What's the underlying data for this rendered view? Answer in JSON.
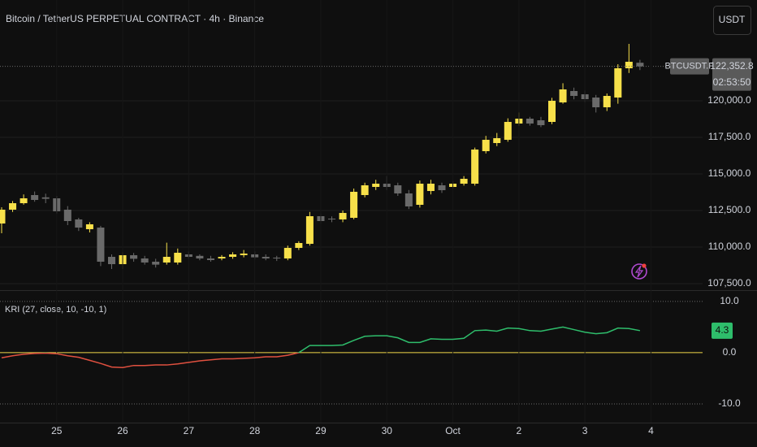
{
  "ui": {
    "currency_button": "USDT"
  },
  "chart_data": [
    {
      "type": "candlestick",
      "title": "Bitcoin / TetherUS PERPETUAL CONTRACT · 4h · Binance",
      "symbol_label": "BTCUSDT.P",
      "last_price_label": "122,352.8",
      "countdown": "02:53:50",
      "up_color": "#f7e04a",
      "down_color": "#6a6a6a",
      "grid": true,
      "ylim": [
        107056,
        126889
      ],
      "yticks": [
        {
          "value": 107500,
          "label": "107,500.0"
        },
        {
          "value": 110000,
          "label": "110,000.0"
        },
        {
          "value": 112500,
          "label": "112,500.0"
        },
        {
          "value": 115000,
          "label": "115,000.0"
        },
        {
          "value": 117500,
          "label": "117,500.0"
        },
        {
          "value": 120000,
          "label": "120,000.0"
        }
      ],
      "open": [
        111611,
        112556,
        113000,
        113556,
        113400,
        113333,
        112556,
        111889,
        111222,
        111333,
        109333,
        108833,
        109444,
        109222,
        109000,
        108944,
        108944,
        109500,
        109400,
        109222,
        109222,
        109333,
        109450,
        109500,
        109333,
        109278,
        109222,
        109944,
        110222,
        112111,
        111944,
        111889,
        112000,
        113556,
        114111,
        114333,
        114222,
        113667,
        112889,
        113833,
        114222,
        114111,
        114333,
        114333,
        116556,
        117111,
        117333,
        118444,
        118778,
        118667,
        118556,
        119889,
        120667,
        120444,
        120222,
        119556,
        120222,
        122222,
        122600,
        null
      ],
      "high": [
        112722,
        113150,
        113600,
        113800,
        113650,
        113500,
        112800,
        112000,
        111700,
        111450,
        109500,
        109650,
        109600,
        109400,
        109200,
        110300,
        109900,
        109700,
        109500,
        109400,
        109450,
        109650,
        109800,
        109700,
        109500,
        109400,
        110100,
        110400,
        112400,
        112300,
        112100,
        112500,
        114000,
        114400,
        114600,
        114850,
        114400,
        113900,
        114550,
        114600,
        114400,
        114500,
        114850,
        116800,
        117600,
        117800,
        118800,
        119200,
        118900,
        118900,
        120200,
        121200,
        120900,
        120700,
        120400,
        120500,
        122500,
        123889,
        122800,
        null
      ],
      "low": [
        110945,
        112400,
        112900,
        113100,
        113000,
        112300,
        111500,
        111100,
        111000,
        108700,
        108500,
        108500,
        109000,
        108800,
        108600,
        108800,
        108800,
        109200,
        109100,
        109000,
        109100,
        109200,
        109300,
        109150,
        109100,
        109050,
        109100,
        109800,
        110100,
        111600,
        111700,
        111700,
        111900,
        113400,
        113900,
        113900,
        113500,
        112600,
        112700,
        113600,
        113700,
        114000,
        114200,
        114200,
        116400,
        116900,
        117200,
        118300,
        118300,
        118200,
        118400,
        119800,
        120100,
        119900,
        119200,
        119300,
        119800,
        121900,
        122100,
        null
      ],
      "close": [
        112556,
        113000,
        113333,
        113222,
        113300,
        112444,
        111778,
        111333,
        111556,
        109000,
        108833,
        109444,
        109200,
        108944,
        108800,
        109333,
        109611,
        109333,
        109222,
        109111,
        109333,
        109500,
        109556,
        109300,
        109222,
        109222,
        109944,
        110278,
        112111,
        111778,
        111889,
        112333,
        113778,
        114222,
        114333,
        114111,
        113667,
        112778,
        114333,
        114333,
        113889,
        114333,
        114667,
        116667,
        117333,
        117444,
        118556,
        118778,
        118444,
        118333,
        120000,
        120778,
        120333,
        120111,
        119556,
        120333,
        122222,
        122667,
        122352.8,
        null
      ]
    },
    {
      "type": "line",
      "series": [
        {
          "name": "KRI (27, close, 10, -10, 1)",
          "color_positive": "#2ebd6b",
          "color_negative": "#e0503f",
          "values": [
            -1.0,
            -0.6,
            -0.3,
            -0.15,
            -0.1,
            -0.2,
            -0.6,
            -0.9,
            -1.5,
            -2.1,
            -2.8,
            -2.9,
            -2.5,
            -2.5,
            -2.4,
            -2.4,
            -2.2,
            -1.9,
            -1.6,
            -1.4,
            -1.2,
            -1.2,
            -1.1,
            -1.0,
            -0.8,
            -0.8,
            -0.5,
            0.0,
            1.4,
            1.4,
            1.4,
            1.5,
            2.4,
            3.2,
            3.3,
            3.3,
            2.9,
            2.0,
            2.0,
            2.7,
            2.6,
            2.6,
            2.8,
            4.3,
            4.4,
            4.2,
            4.8,
            4.7,
            4.3,
            4.2,
            4.6,
            5.0,
            4.5,
            4.0,
            3.7,
            3.9,
            4.8,
            4.7,
            4.3,
            null
          ]
        }
      ],
      "last_value_label": "4.3",
      "zero_line_color": "#f0d84a",
      "categories": [
        null,
        null,
        null,
        null,
        null,
        "25",
        null,
        null,
        null,
        null,
        null,
        "26",
        null,
        null,
        null,
        null,
        null,
        "27",
        null,
        null,
        null,
        null,
        null,
        "28",
        null,
        null,
        null,
        null,
        null,
        "29",
        null,
        null,
        null,
        null,
        null,
        "30",
        null,
        null,
        null,
        null,
        null,
        "Oct",
        null,
        null,
        null,
        null,
        null,
        "2",
        null,
        null,
        null,
        null,
        null,
        "3",
        null,
        null,
        null,
        null,
        null,
        "4"
      ],
      "ylim": [
        -13.65,
        12.2
      ],
      "yticks": [
        {
          "value": -10,
          "label": "-10.0"
        },
        {
          "value": 0,
          "label": "0.0"
        },
        {
          "value": 10,
          "label": "10.0"
        }
      ]
    }
  ]
}
